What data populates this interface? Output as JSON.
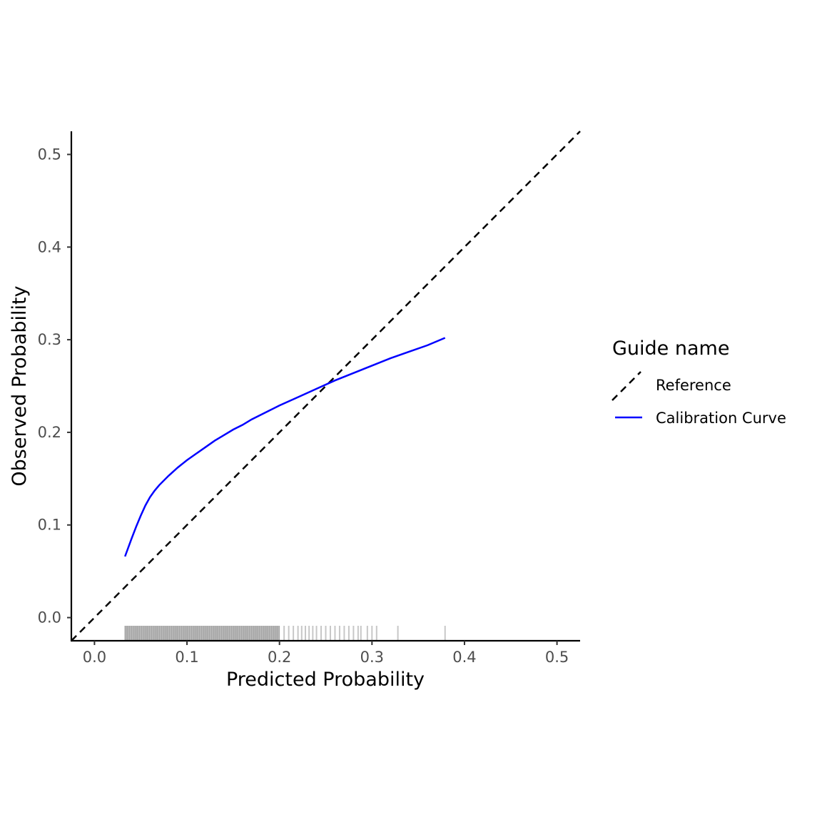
{
  "chart_data": {
    "type": "line",
    "title": "",
    "xlabel": "Predicted Probability",
    "ylabel": "Observed Probability",
    "xlim": [
      -0.025,
      0.525
    ],
    "ylim": [
      -0.025,
      0.525
    ],
    "x_ticks": [
      "0.0",
      "0.1",
      "0.2",
      "0.3",
      "0.4",
      "0.5"
    ],
    "y_ticks": [
      "0.0",
      "0.1",
      "0.2",
      "0.3",
      "0.4",
      "0.5"
    ],
    "grid": false,
    "legend": {
      "title": "Guide name",
      "position": "right",
      "entries": [
        {
          "label": "Reference",
          "style": "dashed",
          "color": "#000000"
        },
        {
          "label": "Calibration Curve",
          "style": "solid",
          "color": "#0000ff"
        }
      ]
    },
    "series": [
      {
        "name": "Reference",
        "color": "#000000",
        "dash": true,
        "x": [
          -0.025,
          0.525
        ],
        "y": [
          -0.025,
          0.525
        ]
      },
      {
        "name": "Calibration Curve",
        "color": "#0000ff",
        "dash": false,
        "x": [
          0.033,
          0.04,
          0.045,
          0.05,
          0.055,
          0.06,
          0.065,
          0.07,
          0.08,
          0.09,
          0.1,
          0.11,
          0.12,
          0.13,
          0.14,
          0.15,
          0.16,
          0.17,
          0.18,
          0.19,
          0.2,
          0.22,
          0.24,
          0.26,
          0.28,
          0.3,
          0.32,
          0.34,
          0.36,
          0.379
        ],
        "y": [
          0.066,
          0.085,
          0.098,
          0.11,
          0.121,
          0.13,
          0.137,
          0.143,
          0.153,
          0.162,
          0.17,
          0.177,
          0.184,
          0.191,
          0.197,
          0.203,
          0.208,
          0.214,
          0.219,
          0.224,
          0.229,
          0.238,
          0.247,
          0.256,
          0.264,
          0.272,
          0.28,
          0.287,
          0.294,
          0.302
        ]
      }
    ],
    "rug": {
      "dense_range": [
        0.033,
        0.2
      ],
      "sparse_x": [
        0.205,
        0.21,
        0.215,
        0.22,
        0.224,
        0.228,
        0.232,
        0.236,
        0.24,
        0.245,
        0.25,
        0.255,
        0.26,
        0.265,
        0.27,
        0.275,
        0.28,
        0.285,
        0.288,
        0.295,
        0.3,
        0.305,
        0.328,
        0.379
      ]
    }
  }
}
